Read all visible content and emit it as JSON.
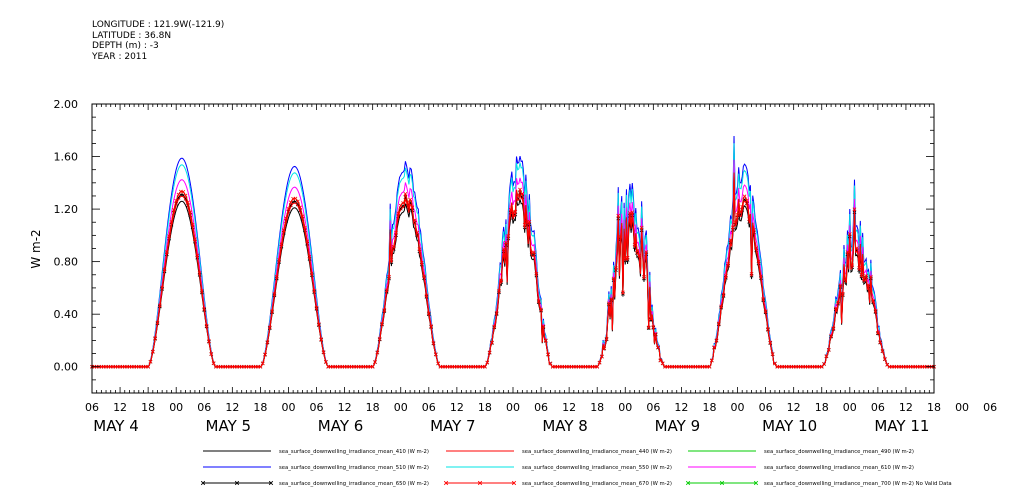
{
  "header": {
    "lines": [
      "LONGITUDE : 121.9W(-121.9)",
      "LATITUDE : 36.8N",
      "DEPTH (m) : -3",
      "YEAR : 2011"
    ]
  },
  "chart_data": {
    "type": "line",
    "title": "",
    "xlabel": "",
    "ylabel": "W m-2",
    "x_range_hours": [
      0,
      180
    ],
    "ylim": [
      -0.2,
      2.0
    ],
    "y_ticks": [
      0.0,
      0.4,
      0.8,
      1.2,
      1.6,
      2.0
    ],
    "y_tick_labels": [
      "0.00",
      "0.40",
      "0.80",
      "1.20",
      "1.60",
      "2.00"
    ],
    "x_tick_labels": [
      "06",
      "12",
      "18",
      "00",
      "06",
      "12",
      "18",
      "00",
      "06",
      "12",
      "18",
      "00",
      "06",
      "12",
      "18",
      "00",
      "06",
      "12",
      "18",
      "00",
      "06",
      "12",
      "18",
      "00",
      "06",
      "12",
      "18",
      "00",
      "06",
      "12",
      "18",
      "00",
      "06"
    ],
    "date_labels": [
      "MAY  4",
      "MAY  5",
      "MAY  6",
      "MAY  7",
      "MAY  8",
      "MAY  9",
      "MAY 10",
      "MAY 11"
    ],
    "date_label_hours": [
      3,
      27,
      51,
      75,
      99,
      123,
      147,
      171
    ],
    "grid": false,
    "legend_position": "bottom",
    "days": [
      {
        "label": "MAY 4",
        "peak_hour": 19.2,
        "peak": 1.26,
        "cloudy": 0
      },
      {
        "label": "MAY 5",
        "peak_hour": 43.3,
        "peak": 1.21,
        "cloudy": 0
      },
      {
        "label": "MAY 6",
        "peak_hour": 67.2,
        "peak": 1.25,
        "cloudy": 0.25
      },
      {
        "label": "MAY 7",
        "peak_hour": 91.2,
        "peak": 1.3,
        "cloudy": 0.55
      },
      {
        "label": "MAY 8",
        "peak_hour": 115.2,
        "peak": 1.2,
        "cloudy": 1.0
      },
      {
        "label": "MAY 9",
        "peak_hour": 139.2,
        "peak": 1.25,
        "cloudy": 0.3
      },
      {
        "label": "MAY 10",
        "peak_hour": 163.2,
        "peak": 0.95,
        "cloudy": 0.8
      }
    ],
    "day_half_width_hours": 7.2,
    "series": [
      {
        "name": "sea_surface_downwelling_irradiance_mean_410 (W m-2)",
        "color": "#000000",
        "scale": 1.0,
        "marker": "none"
      },
      {
        "name": "sea_surface_downwelling_irradiance_mean_440 (W m-2)",
        "color": "#ff0000",
        "scale": 1.03,
        "marker": "none"
      },
      {
        "name": "sea_surface_downwelling_irradiance_mean_490 (W m-2)",
        "color": "#00cc00",
        "scale": 1.06,
        "marker": "none"
      },
      {
        "name": "sea_surface_downwelling_irradiance_mean_510 (W m-2)",
        "color": "#0000ff",
        "scale": 1.26,
        "marker": "none"
      },
      {
        "name": "sea_surface_downwelling_irradiance_mean_550 (W m-2)",
        "color": "#00e5e5",
        "scale": 1.22,
        "marker": "none"
      },
      {
        "name": "sea_surface_downwelling_irradiance_mean_610 (W m-2)",
        "color": "#ff00ff",
        "scale": 1.13,
        "marker": "none"
      },
      {
        "name": "sea_surface_downwelling_irradiance_mean_650 (W m-2)",
        "color": "#000000",
        "scale": 1.04,
        "marker": "x"
      },
      {
        "name": "sea_surface_downwelling_irradiance_mean_670 (W m-2)",
        "color": "#ff0000",
        "scale": 1.06,
        "marker": "x"
      },
      {
        "name": "sea_surface_downwelling_irradiance_mean_700 (W m-2) No Valid Data",
        "color": "#00cc00",
        "scale": 0,
        "marker": "x"
      }
    ]
  }
}
